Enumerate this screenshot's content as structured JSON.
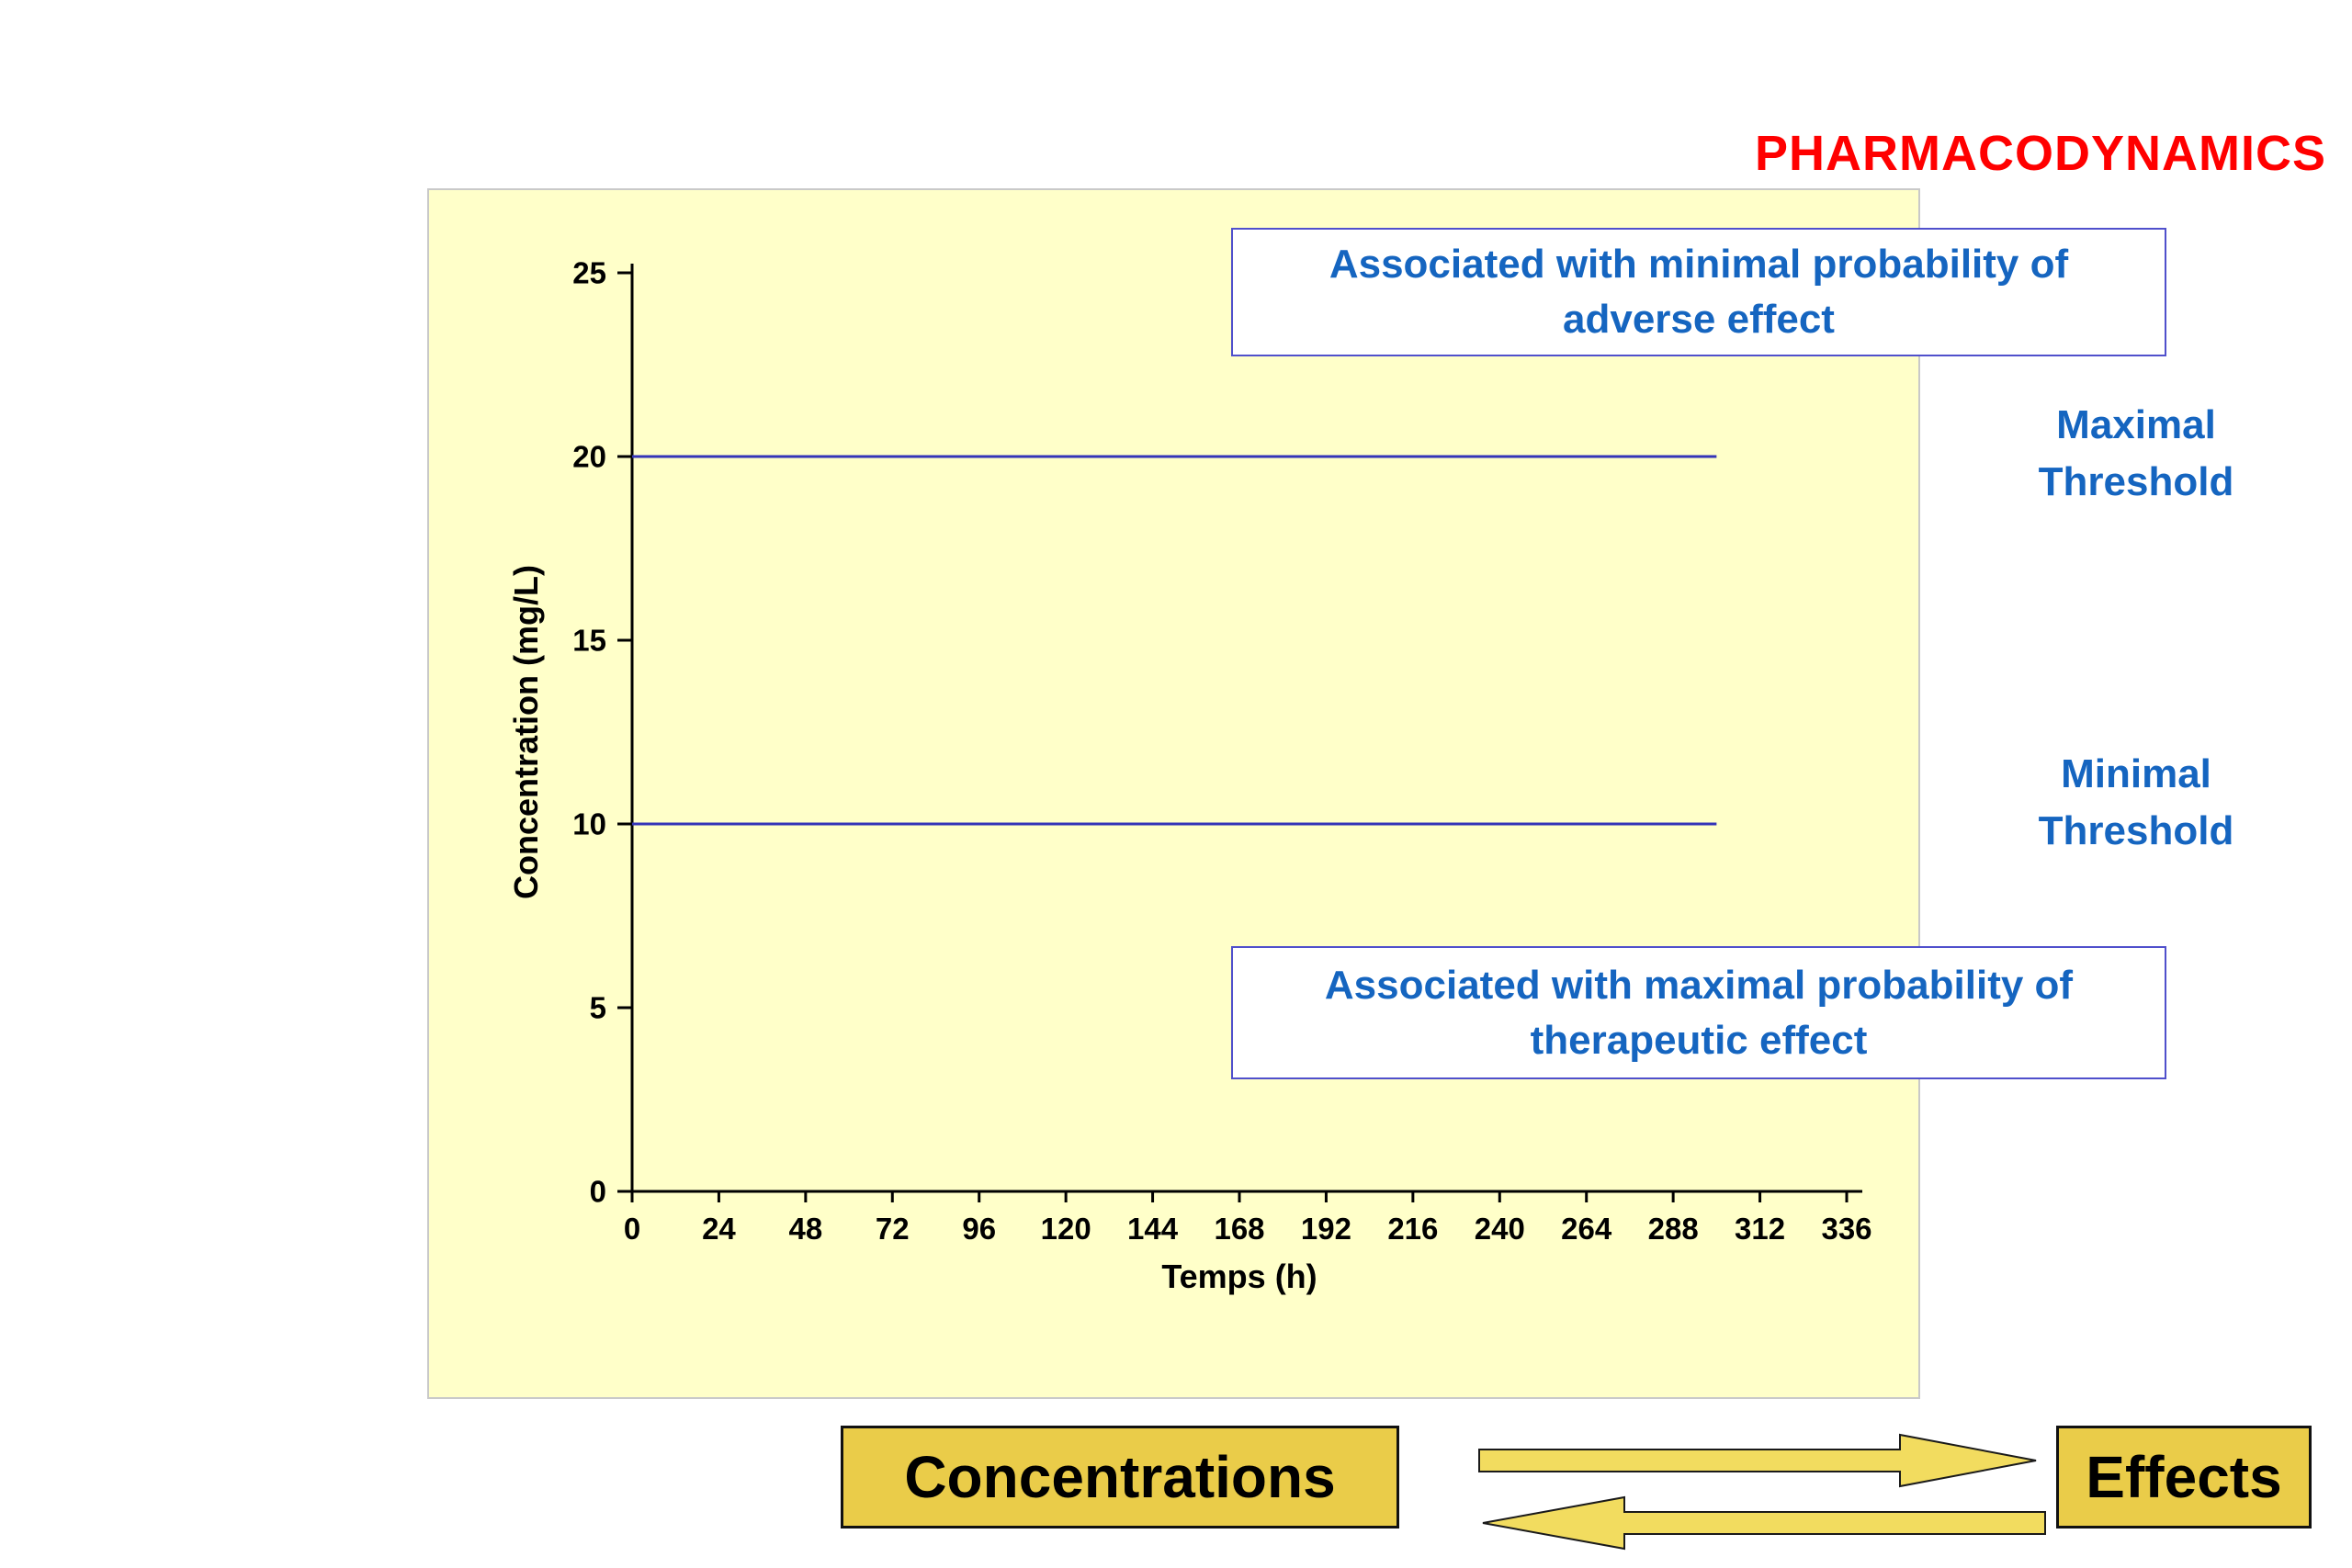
{
  "slide": {
    "title": "PHARMACODYNAMICS"
  },
  "annotations": {
    "adverse_box": {
      "line1": "Associated with minimal probability of",
      "line2": "adverse effect"
    },
    "therapeutic_box": {
      "line1": "Associated with maximal probability of",
      "line2": "therapeutic effect"
    },
    "maximal_threshold": {
      "line1": "Maximal",
      "line2": "Threshold"
    },
    "minimal_threshold": {
      "line1": "Minimal",
      "line2": "Threshold"
    }
  },
  "bottom": {
    "concentrations_label": "Concentrations",
    "effects_label": "Effects"
  },
  "colors": {
    "title_red": "#FF0000",
    "blue_text": "#1565C0",
    "line_blue": "#3434B8",
    "box_border_blue": "#5050CC",
    "chart_bg": "#FFFFC9",
    "chart_border": "#C9C9C9",
    "gold_box": "#EACC49",
    "gold_arrow": "#F2DC5F"
  },
  "chart_data": {
    "type": "line",
    "title": "",
    "xlabel": "Temps (h)",
    "ylabel": "Concentration (mg/L)",
    "xlim": [
      0,
      336
    ],
    "ylim": [
      0,
      25
    ],
    "x_ticks": [
      0,
      24,
      48,
      72,
      96,
      120,
      144,
      168,
      192,
      216,
      240,
      264,
      288,
      312,
      336
    ],
    "y_ticks": [
      0,
      5,
      10,
      15,
      20,
      25
    ],
    "grid": false,
    "legend": "none",
    "series": [
      {
        "name": "Maximal Threshold",
        "color": "#3434B8",
        "x": [
          0,
          300
        ],
        "y": [
          20,
          20
        ]
      },
      {
        "name": "Minimal Threshold",
        "color": "#3434B8",
        "x": [
          0,
          300
        ],
        "y": [
          10,
          10
        ]
      }
    ]
  }
}
